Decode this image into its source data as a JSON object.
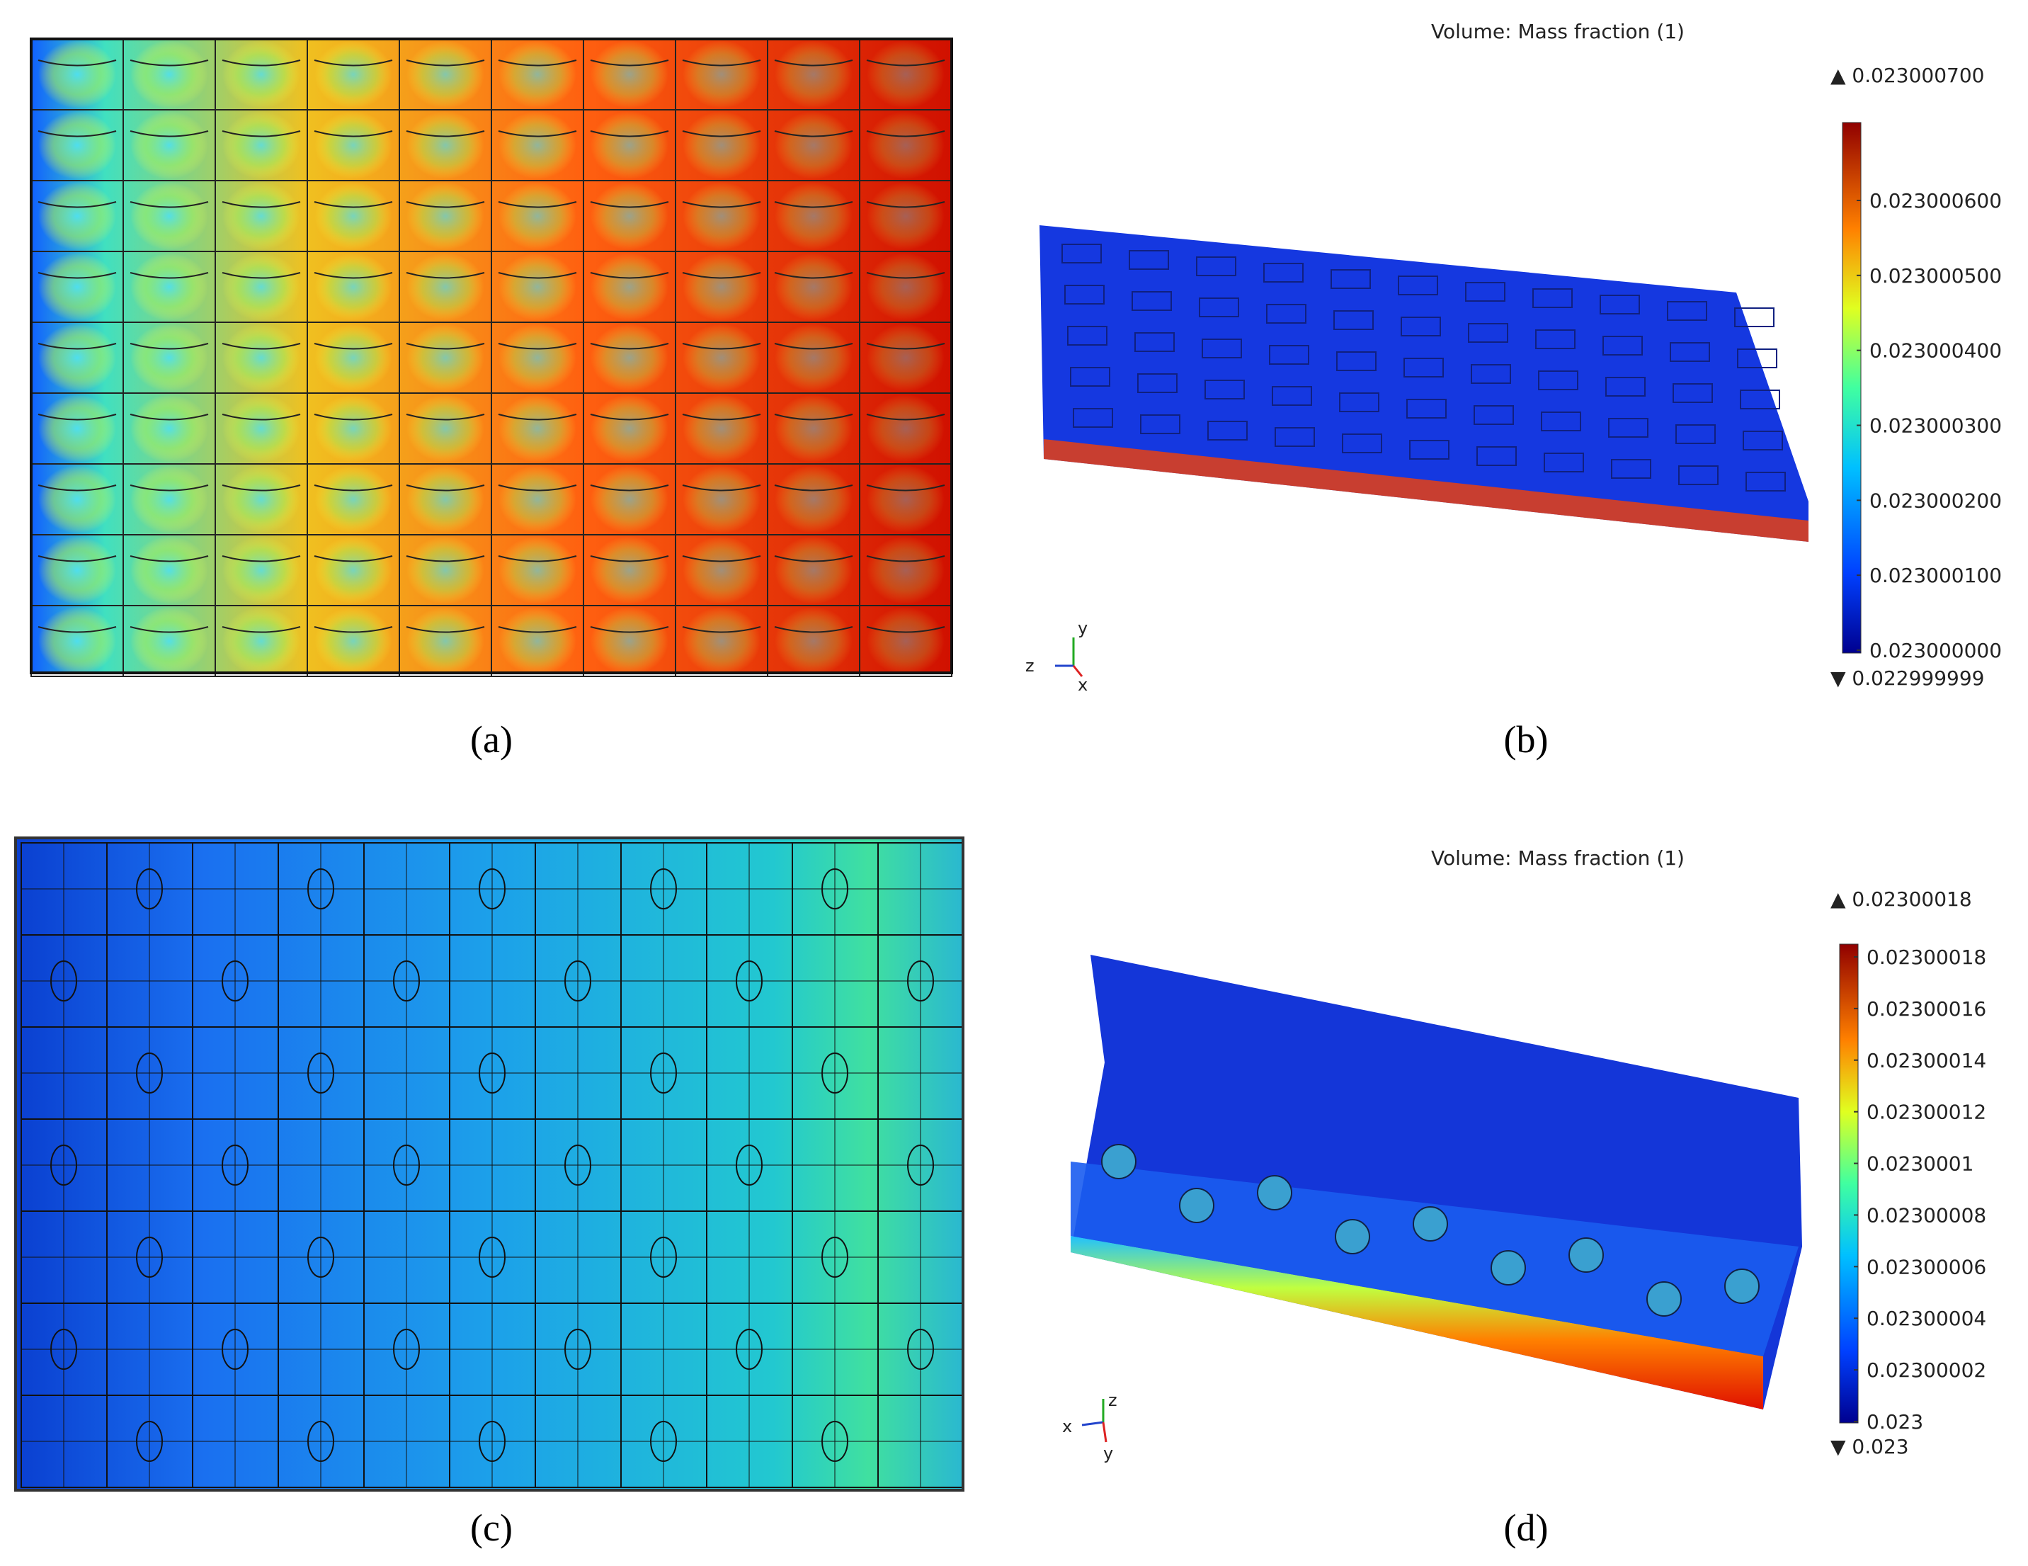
{
  "panels": [
    {
      "label": "(a)"
    },
    {
      "label": "(b)",
      "colorbar": {
        "title": "Volume: Mass fraction (1)",
        "max": "▲ 0.023000700",
        "min": "▼ 0.022999999",
        "ticks": [
          "0.023000600",
          "0.023000500",
          "0.023000400",
          "0.023000300",
          "0.023000200",
          "0.023000100",
          "0.023000000"
        ]
      },
      "axes": [
        "y",
        "z",
        "x"
      ]
    },
    {
      "label": "(c)"
    },
    {
      "label": "(d)",
      "colorbar": {
        "title": "Volume: Mass fraction (1)",
        "max": "▲ 0.02300018",
        "min": "▼ 0.023",
        "ticks": [
          "0.02300018",
          "0.02300016",
          "0.02300014",
          "0.02300012",
          "0.0230001",
          "0.02300008",
          "0.02300006",
          "0.02300004",
          "0.02300002",
          "0.023"
        ]
      },
      "axes": [
        "z",
        "x",
        "y"
      ]
    }
  ]
}
